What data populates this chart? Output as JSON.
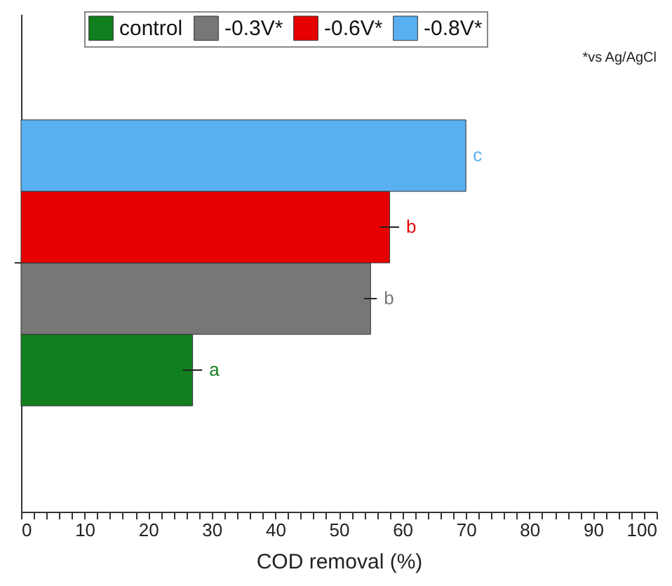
{
  "chart_data": {
    "type": "bar",
    "orientation": "horizontal",
    "xlabel": "COD removal (%)",
    "categories": [
      null
    ],
    "series": [
      {
        "name": "control",
        "color": "#117f1d",
        "values": [
          27
        ],
        "errors": [
          1.5
        ]
      },
      {
        "name": "-0.3V*",
        "color": "#777777",
        "values": [
          55
        ],
        "errors": [
          1
        ]
      },
      {
        "name": "-0.6V*",
        "color": "#e60000",
        "values": [
          58
        ],
        "errors": [
          1.5
        ]
      },
      {
        "name": "-0.8V*",
        "color": "#59b0f0",
        "values": [
          70
        ],
        "errors": [
          null
        ]
      }
    ],
    "annotations": [
      "a",
      "b",
      "b",
      "c",
      "*vs Ag/AgCl"
    ],
    "xlim": [
      0,
      100
    ],
    "xticks": [
      0,
      {
        "value": 2,
        "label": null
      },
      {
        "value": 4,
        "label": null
      },
      {
        "value": 6,
        "label": null
      },
      {
        "value": 8,
        "label": null
      },
      10,
      {
        "value": 12,
        "label": null
      },
      {
        "value": 14,
        "label": null
      },
      {
        "value": 16,
        "label": null
      },
      {
        "value": 18,
        "label": null
      },
      20,
      {
        "value": 22,
        "label": null
      },
      {
        "value": 24,
        "label": null
      },
      {
        "value": 26,
        "label": null
      },
      {
        "value": 28,
        "label": null
      },
      30,
      {
        "value": 32,
        "label": null
      },
      {
        "value": 34,
        "label": null
      },
      {
        "value": 36,
        "label": null
      },
      {
        "value": 38,
        "label": null
      },
      40,
      {
        "value": 42,
        "label": null
      },
      {
        "value": 44,
        "label": null
      },
      {
        "value": 46,
        "label": null
      },
      {
        "value": 48,
        "label": null
      },
      50,
      {
        "value": 52,
        "label": null
      },
      {
        "value": 54,
        "label": null
      },
      {
        "value": 56,
        "label": null
      },
      {
        "value": 58,
        "label": null
      },
      60,
      {
        "value": 62,
        "label": null
      },
      {
        "value": 64,
        "label": null
      },
      {
        "value": 66,
        "label": null
      },
      {
        "value": 68,
        "label": null
      },
      70,
      {
        "value": 72,
        "label": null
      },
      {
        "value": 74,
        "label": null
      },
      {
        "value": 76,
        "label": null
      },
      {
        "value": 78,
        "label": null
      },
      80,
      {
        "value": 82,
        "label": null
      },
      {
        "value": 84,
        "label": null
      },
      {
        "value": 86,
        "label": null
      },
      {
        "value": 88,
        "label": null
      },
      90,
      {
        "value": 92,
        "label": null
      },
      {
        "value": 94,
        "label": null
      },
      {
        "value": 96,
        "label": null
      },
      {
        "value": 98,
        "label": null
      },
      100
    ],
    "legend": "top",
    "tick_labels": "x",
    "grid": false
  }
}
